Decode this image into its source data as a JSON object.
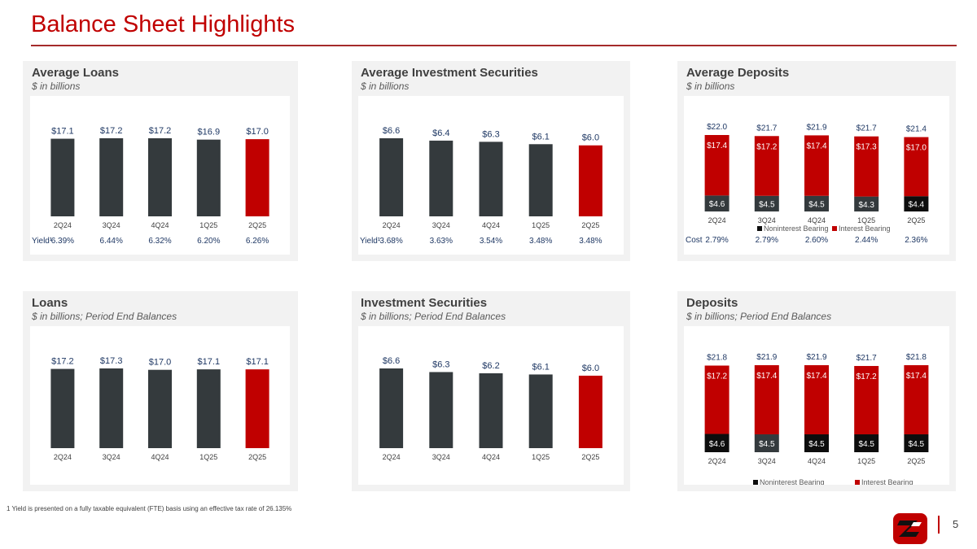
{
  "page": {
    "title": "Balance Sheet Highlights",
    "page_number": "5"
  },
  "footnote": "1   Yield is presented on a fully taxable equivalent (FTE) basis using an effective tax rate of 26.135%",
  "colors": {
    "dark_bar": "#343a3d",
    "red_bar": "#c00000",
    "black_bar": "#0d0d0d",
    "value_text": "#1f3864"
  },
  "chart_data": [
    {
      "type": "bar",
      "title": "Average Loans",
      "subtitle": "$ in billions",
      "categories": [
        "2Q24",
        "3Q24",
        "4Q24",
        "1Q25",
        "2Q25"
      ],
      "values": [
        17.1,
        17.2,
        17.2,
        16.9,
        17.0
      ],
      "value_labels": [
        "$17.1",
        "$17.2",
        "$17.2",
        "$16.9",
        "$17.0"
      ],
      "highlight_last": true,
      "row_label": "Yield¹",
      "row_values": [
        "6.39%",
        "6.44%",
        "6.32%",
        "6.20%",
        "6.26%"
      ]
    },
    {
      "type": "bar",
      "title": "Average Investment Securities",
      "subtitle": "$ in billions",
      "categories": [
        "2Q24",
        "3Q24",
        "4Q24",
        "1Q25",
        "2Q25"
      ],
      "values": [
        6.6,
        6.4,
        6.3,
        6.1,
        6.0
      ],
      "value_labels": [
        "$6.6",
        "$6.4",
        "$6.3",
        "$6.1",
        "$6.0"
      ],
      "highlight_last": true,
      "row_label": "Yield¹",
      "row_values": [
        "3.68%",
        "3.63%",
        "3.54%",
        "3.48%",
        "3.48%"
      ]
    },
    {
      "type": "bar",
      "stacked": true,
      "title": "Average Deposits",
      "subtitle": "$ in billions",
      "categories": [
        "2Q24",
        "3Q24",
        "4Q24",
        "1Q25",
        "2Q25"
      ],
      "totals": [
        "$22.0",
        "$21.7",
        "$21.9",
        "$21.7",
        "$21.4"
      ],
      "series": [
        {
          "name": "Noninterest Bearing",
          "values": [
            4.6,
            4.5,
            4.5,
            4.3,
            4.4
          ],
          "labels": [
            "$4.6",
            "$4.5",
            "$4.5",
            "$4.3",
            "$4.4"
          ]
        },
        {
          "name": "Interest Bearing",
          "values": [
            17.4,
            17.2,
            17.4,
            17.3,
            17.0
          ],
          "labels": [
            "$17.4",
            "$17.2",
            "$17.4",
            "$17.3",
            "$17.0"
          ]
        }
      ],
      "legend": "bottom",
      "row_label": "Cost",
      "row_values": [
        "2.79%",
        "2.79%",
        "2.60%",
        "2.44%",
        "2.36%"
      ]
    },
    {
      "type": "bar",
      "title": "Loans",
      "subtitle": "$ in billions; Period End Balances",
      "categories": [
        "2Q24",
        "3Q24",
        "4Q24",
        "1Q25",
        "2Q25"
      ],
      "values": [
        17.2,
        17.3,
        17.0,
        17.1,
        17.1
      ],
      "value_labels": [
        "$17.2",
        "$17.3",
        "$17.0",
        "$17.1",
        "$17.1"
      ],
      "highlight_last": true
    },
    {
      "type": "bar",
      "title": "Investment Securities",
      "subtitle": "$ in billions; Period End Balances",
      "categories": [
        "2Q24",
        "3Q24",
        "4Q24",
        "1Q25",
        "2Q25"
      ],
      "values": [
        6.6,
        6.3,
        6.2,
        6.1,
        6.0
      ],
      "value_labels": [
        "$6.6",
        "$6.3",
        "$6.2",
        "$6.1",
        "$6.0"
      ],
      "highlight_last": true
    },
    {
      "type": "bar",
      "stacked": true,
      "title": "Deposits",
      "subtitle": "$ in billions; Period End Balances",
      "categories": [
        "2Q24",
        "3Q24",
        "4Q24",
        "1Q25",
        "2Q25"
      ],
      "totals": [
        "$21.8",
        "$21.9",
        "$21.9",
        "$21.7",
        "$21.8"
      ],
      "series": [
        {
          "name": "Noninterest Bearing",
          "values": [
            4.6,
            4.5,
            4.5,
            4.5,
            4.5
          ],
          "labels": [
            "$4.6",
            "$4.5",
            "$4.5",
            "$4.5",
            "$4.5"
          ]
        },
        {
          "name": "Interest Bearing",
          "values": [
            17.2,
            17.4,
            17.4,
            17.2,
            17.4
          ],
          "labels": [
            "$17.2",
            "$17.4",
            "$17.4",
            "$17.2",
            "$17.4"
          ]
        }
      ],
      "legend": "bottom"
    }
  ]
}
